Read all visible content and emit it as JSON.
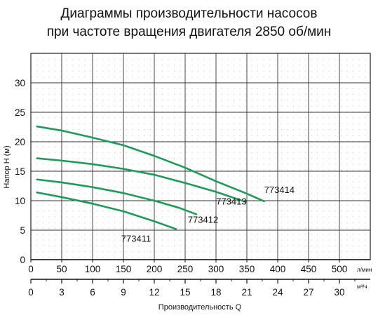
{
  "chart_data": {
    "type": "line",
    "title": [
      "Диаграммы производительности насосов",
      "при частоте вращения двигателя 2850 об/мин"
    ],
    "ylabel": "Напор H (м)",
    "xlabel": "Производительность Q",
    "x_unit_primary": "л/мин",
    "x_unit_secondary": "м³/ч",
    "xlim": [
      0,
      550
    ],
    "ylim": [
      0,
      35
    ],
    "x_ticks": [
      0,
      50,
      100,
      150,
      200,
      250,
      300,
      350,
      400,
      450,
      500
    ],
    "x2_ticks": [
      0,
      3,
      6,
      9,
      12,
      15,
      18,
      21,
      24,
      27,
      30
    ],
    "y_ticks": [
      0,
      5,
      10,
      15,
      20,
      25,
      30
    ],
    "grid": true,
    "series_color": "#1e9b57",
    "series": [
      {
        "name": "773411",
        "x": [
          10,
          50,
          100,
          150,
          200,
          235
        ],
        "y": [
          11.4,
          10.6,
          9.5,
          8.2,
          6.5,
          5.2
        ]
      },
      {
        "name": "773412",
        "x": [
          10,
          50,
          100,
          150,
          200,
          240,
          268
        ],
        "y": [
          13.6,
          13.1,
          12.3,
          11.3,
          10.0,
          8.8,
          7.7
        ]
      },
      {
        "name": "773413",
        "x": [
          10,
          50,
          100,
          150,
          200,
          250,
          300,
          348
        ],
        "y": [
          17.2,
          16.8,
          16.2,
          15.4,
          14.4,
          13.0,
          11.5,
          9.8
        ]
      },
      {
        "name": "773414",
        "x": [
          10,
          50,
          100,
          150,
          200,
          250,
          300,
          350,
          378
        ],
        "y": [
          22.6,
          21.9,
          20.7,
          19.4,
          17.6,
          15.6,
          13.3,
          11.2,
          9.9
        ]
      }
    ]
  }
}
